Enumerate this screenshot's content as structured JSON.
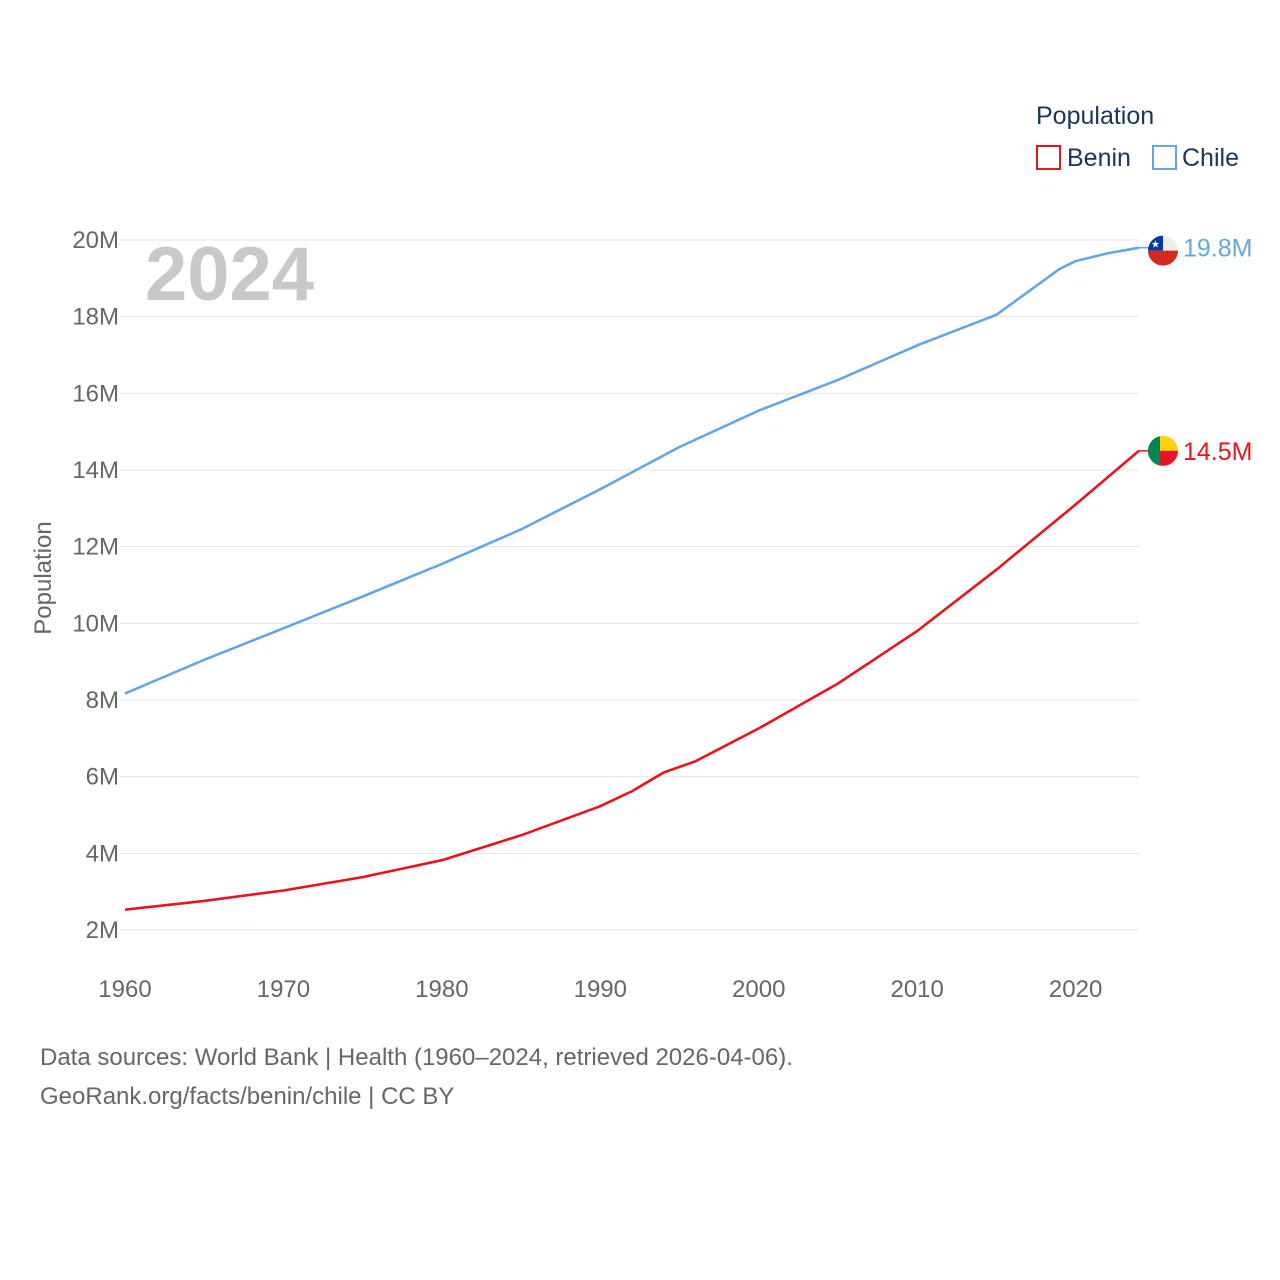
{
  "chart_data": {
    "type": "line",
    "legend_title": "Population",
    "legend_placement": "top-right",
    "year_label": "2024",
    "ylabel": "Population",
    "xlabel": "",
    "xlim": [
      1960,
      2024
    ],
    "ylim": [
      2000000,
      20000000
    ],
    "xticks": [
      1960,
      1970,
      1980,
      1990,
      2000,
      2010,
      2020
    ],
    "yticks": [
      2000000,
      4000000,
      6000000,
      8000000,
      10000000,
      12000000,
      14000000,
      16000000,
      18000000,
      20000000
    ],
    "ytick_labels": [
      "2M",
      "4M",
      "6M",
      "8M",
      "10M",
      "12M",
      "14M",
      "16M",
      "18M",
      "20M"
    ],
    "grid": true,
    "series": [
      {
        "name": "Benin",
        "color": "#e8141c",
        "flag_icon": "benin-flag-icon",
        "end_label": "14.5M",
        "points": [
          [
            1960,
            2530000
          ],
          [
            1965,
            2760000
          ],
          [
            1970,
            3030000
          ],
          [
            1975,
            3380000
          ],
          [
            1980,
            3820000
          ],
          [
            1985,
            4470000
          ],
          [
            1990,
            5230000
          ],
          [
            1992,
            5620000
          ],
          [
            1994,
            6110000
          ],
          [
            1996,
            6400000
          ],
          [
            2000,
            7260000
          ],
          [
            2005,
            8430000
          ],
          [
            2010,
            9800000
          ],
          [
            2015,
            11400000
          ],
          [
            2020,
            13100000
          ],
          [
            2024,
            14500000
          ]
        ]
      },
      {
        "name": "Chile",
        "color": "#64a6e3",
        "flag_icon": "chile-flag-icon",
        "end_label": "19.8M",
        "points": [
          [
            1960,
            8170000
          ],
          [
            1965,
            9050000
          ],
          [
            1970,
            9870000
          ],
          [
            1975,
            10700000
          ],
          [
            1980,
            11550000
          ],
          [
            1985,
            12450000
          ],
          [
            1990,
            13500000
          ],
          [
            1995,
            14600000
          ],
          [
            2000,
            15550000
          ],
          [
            2005,
            16350000
          ],
          [
            2010,
            17250000
          ],
          [
            2015,
            18050000
          ],
          [
            2017,
            18650000
          ],
          [
            2019,
            19250000
          ],
          [
            2020,
            19450000
          ],
          [
            2022,
            19650000
          ],
          [
            2024,
            19800000
          ]
        ]
      }
    ]
  },
  "footer": {
    "sources": "Data sources: World Bank | Health (1960–2024, retrieved 2026-04-06).",
    "credit": "GeoRank.org/facts/benin/chile | CC BY"
  }
}
